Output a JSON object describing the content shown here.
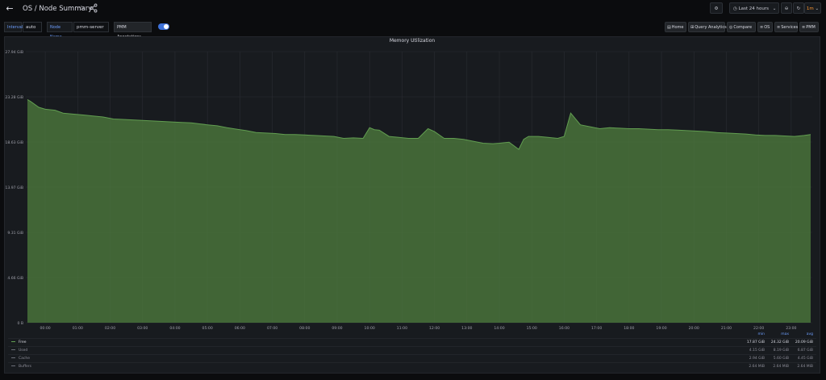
{
  "header": {
    "title": "OS / Node Summary",
    "back_icon": "arrow-left-icon",
    "time_range": "Last 24 hours",
    "refresh_interval": "1m"
  },
  "variables": {
    "interval_label": "Interval",
    "interval_value": "auto",
    "node_label": "Node Name",
    "node_value": "pmm-server",
    "annotations_label": "PMM Annotations",
    "annotations_enabled": true
  },
  "links": [
    {
      "label": "Home",
      "icon": "document-icon"
    },
    {
      "label": "Query Analytics",
      "icon": "apps-icon"
    },
    {
      "label": "Compare",
      "icon": "compass-icon"
    },
    {
      "label": "OS",
      "icon": "bars-icon"
    },
    {
      "label": "Services",
      "icon": "bars-icon"
    },
    {
      "label": "PMM",
      "icon": "bars-icon"
    }
  ],
  "panel": {
    "title": "Memory Utilization"
  },
  "chart_data": {
    "type": "area",
    "title": "Memory Utilization",
    "y_ticks": [
      "0 B",
      "4.66 GiB",
      "9.31 GiB",
      "13.97 GiB",
      "18.63 GiB",
      "23.28 GiB",
      "27.94 GiB"
    ],
    "ylim": [
      0,
      27.94
    ],
    "y_unit": "GiB",
    "x_ticks": [
      "00:00",
      "01:00",
      "02:00",
      "03:00",
      "04:00",
      "05:00",
      "06:00",
      "07:00",
      "08:00",
      "09:00",
      "10:00",
      "11:00",
      "12:00",
      "13:00",
      "14:00",
      "15:00",
      "16:00",
      "17:00",
      "18:00",
      "19:00",
      "20:00",
      "21:00",
      "22:00",
      "23:00"
    ],
    "series": [
      {
        "name": "Free",
        "color": "#629e51",
        "x": [
          -0.55,
          -0.45,
          -0.2,
          0.0,
          0.3,
          0.55,
          0.85,
          1.2,
          1.5,
          1.8,
          2.1,
          2.45,
          2.75,
          3.0,
          3.3,
          3.6,
          3.9,
          4.2,
          4.5,
          4.75,
          5.0,
          5.3,
          5.6,
          5.9,
          6.2,
          6.5,
          6.8,
          7.1,
          7.4,
          7.7,
          8.0,
          8.3,
          8.6,
          8.9,
          9.2,
          9.5,
          9.8,
          10.0,
          10.15,
          10.3,
          10.6,
          10.9,
          11.2,
          11.5,
          11.8,
          12.0,
          12.3,
          12.6,
          12.9,
          13.2,
          13.5,
          13.8,
          14.0,
          14.3,
          14.6,
          14.75,
          14.9,
          15.2,
          15.5,
          15.8,
          16.0,
          16.2,
          16.5,
          16.8,
          17.1,
          17.4,
          17.7,
          18.0,
          18.3,
          18.6,
          18.9,
          19.2,
          19.5,
          19.8,
          20.1,
          20.4,
          20.7,
          21.0,
          21.3,
          21.6,
          21.9,
          22.2,
          22.5,
          22.8,
          23.1,
          23.4,
          23.6
        ],
        "y": [
          23.0,
          22.8,
          22.2,
          22.0,
          21.9,
          21.6,
          21.5,
          21.4,
          21.3,
          21.2,
          21.0,
          20.95,
          20.9,
          20.85,
          20.8,
          20.75,
          20.7,
          20.65,
          20.6,
          20.5,
          20.4,
          20.3,
          20.1,
          19.95,
          19.8,
          19.6,
          19.55,
          19.5,
          19.4,
          19.4,
          19.35,
          19.3,
          19.25,
          19.2,
          19.0,
          19.05,
          19.0,
          20.1,
          19.9,
          19.85,
          19.2,
          19.1,
          19.0,
          19.0,
          20.0,
          19.7,
          19.0,
          19.0,
          18.9,
          18.7,
          18.5,
          18.45,
          18.5,
          18.6,
          17.87,
          18.9,
          19.2,
          19.2,
          19.1,
          19.0,
          19.2,
          21.6,
          20.4,
          20.2,
          20.0,
          20.1,
          20.05,
          20.0,
          20.0,
          19.95,
          19.9,
          19.9,
          19.85,
          19.8,
          19.75,
          19.7,
          19.6,
          19.55,
          19.5,
          19.45,
          19.35,
          19.3,
          19.3,
          19.25,
          19.2,
          19.3,
          19.4
        ]
      }
    ],
    "legend": {
      "headers": [
        "min",
        "max",
        "avg"
      ],
      "rows": [
        {
          "name": "Free",
          "min": "17.87 GiB",
          "max": "24.32 GiB",
          "avg": "20.09 GiB"
        },
        {
          "name": "Used",
          "min": "4.15 GiB",
          "max": "8.19 GiB",
          "avg": "6.87 GiB"
        },
        {
          "name": "Cache",
          "min": "2.94 GiB",
          "max": "5.60 GiB",
          "avg": "4.45 GiB"
        },
        {
          "name": "Buffers",
          "min": "2.64 MiB",
          "max": "2.64 MiB",
          "avg": "2.64 MiB"
        }
      ]
    }
  }
}
